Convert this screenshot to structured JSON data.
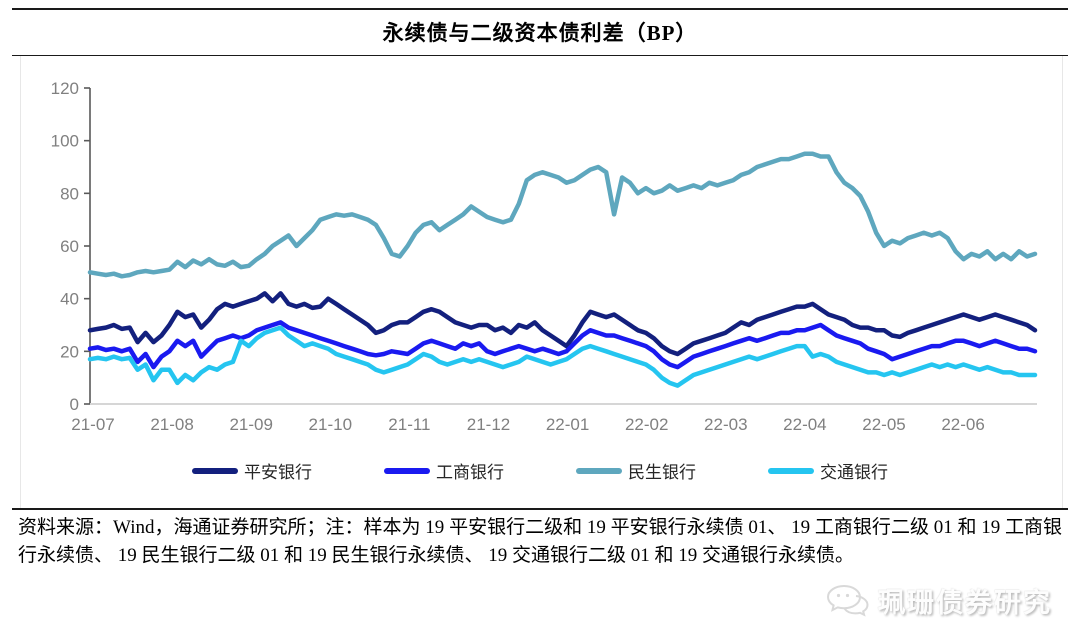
{
  "title": "永续债与二级资本债利差（BP）",
  "footer": {
    "note": "资料来源：Wind，海通证券研究所；注：样本为 19 平安银行二级和 19 平安银行永续债 01、 19 工商银行二级 01 和 19 工商银行永续债、 19 民生银行二级 01 和 19 民生银行永续债、 19 交通银行二级 01 和 19 交通银行永续债。"
  },
  "watermark": {
    "icon": "wechat-chat-bubble-icon",
    "text": "珮珊债券研究"
  },
  "chart_data": {
    "type": "line",
    "title": "永续债与二级资本债利差（BP）",
    "ylabel": "",
    "xlabel": "",
    "ylim": [
      0,
      120
    ],
    "ytick_step": 20,
    "ytick_labels": [
      "0",
      "20",
      "40",
      "60",
      "80",
      "100",
      "120"
    ],
    "x_tick_labels": [
      "21-07",
      "21-08",
      "21-09",
      "21-10",
      "21-11",
      "21-12",
      "22-01",
      "22-02",
      "22-03",
      "22-04",
      "22-05",
      "22-06"
    ],
    "grid": false,
    "legend_position": "bottom",
    "axis_color": "#595959",
    "tick_label_color": "#808080",
    "zero_line_color": "#d6d6d6",
    "series": [
      {
        "name": "平安银行",
        "color": "#13207e",
        "values": [
          28,
          28.5,
          29,
          30,
          28.5,
          29,
          23.5,
          27,
          23.5,
          26,
          30,
          35,
          33,
          34,
          29,
          32,
          36,
          38,
          37,
          38,
          39,
          40,
          42,
          39,
          42,
          38,
          37,
          38,
          36.5,
          37,
          40,
          38,
          36,
          34,
          32,
          30,
          27,
          28,
          30,
          31,
          31,
          33,
          35,
          36,
          35,
          33,
          31,
          30,
          29,
          30,
          30,
          28,
          29,
          27,
          30,
          29,
          31,
          28,
          26,
          24,
          22,
          26,
          31,
          35,
          34,
          33,
          34,
          32,
          30,
          28,
          27,
          25,
          22,
          20,
          19,
          21,
          23,
          24,
          25,
          26,
          27,
          29,
          31,
          30,
          32,
          33,
          34,
          35,
          36,
          37,
          37,
          38,
          36,
          34,
          33,
          32,
          30,
          29,
          29,
          28,
          28,
          26,
          25.5,
          27,
          28,
          29,
          30,
          31,
          32,
          33,
          34,
          33,
          32,
          33,
          34,
          33,
          32,
          31,
          30,
          28
        ]
      },
      {
        "name": "工商银行",
        "color": "#1a1af0",
        "values": [
          21,
          21.5,
          20.5,
          21,
          20,
          21,
          16,
          19,
          14,
          18,
          20,
          24,
          22,
          24,
          18,
          21,
          24,
          25,
          26,
          25,
          26,
          28,
          29,
          30,
          31,
          29,
          28,
          27,
          26,
          25,
          24,
          23,
          22,
          21,
          20,
          19,
          18.5,
          19,
          20,
          19.5,
          19,
          21,
          23,
          24,
          23,
          22,
          21,
          23,
          22,
          23,
          20,
          19,
          20,
          21,
          22,
          21,
          20,
          21,
          20,
          19,
          20,
          23,
          26,
          28,
          27,
          26,
          26,
          25,
          24,
          23,
          22,
          20,
          17,
          15,
          14,
          16,
          18,
          19,
          20,
          21,
          22,
          23,
          24,
          25,
          24,
          25,
          26,
          27,
          27,
          28,
          28,
          29,
          30,
          28,
          26,
          25,
          24,
          23,
          21,
          20,
          19,
          17,
          18,
          19,
          20,
          21,
          22,
          22,
          23,
          24,
          24,
          23,
          22,
          23,
          24,
          23,
          22,
          21,
          21,
          20
        ]
      },
      {
        "name": "民生银行",
        "color": "#5ea7be",
        "values": [
          50,
          49.5,
          49,
          49.5,
          48.5,
          49,
          50,
          50.5,
          50,
          50.5,
          51,
          54,
          52,
          54.5,
          53,
          55,
          53,
          52.5,
          54,
          52,
          52.5,
          55,
          57,
          60,
          62,
          64,
          60,
          63,
          66,
          70,
          71,
          72,
          71.5,
          72,
          71,
          70,
          68,
          63,
          57,
          56,
          60,
          65,
          68,
          69,
          66,
          68,
          70,
          72,
          75,
          73,
          71,
          70,
          69,
          70,
          76,
          85,
          87,
          88,
          87,
          86,
          84,
          85,
          87,
          89,
          90,
          88,
          72,
          86,
          84,
          80,
          82,
          80,
          81,
          83,
          81,
          82,
          83,
          82,
          84,
          83,
          84,
          85,
          87,
          88,
          90,
          91,
          92,
          93,
          93,
          94,
          95,
          95,
          94,
          94,
          88,
          84,
          82,
          79,
          73,
          65,
          60,
          62,
          61,
          63,
          64,
          65,
          64,
          65,
          63,
          58,
          55,
          57,
          56,
          58,
          55,
          57,
          55,
          58,
          56,
          57
        ]
      },
      {
        "name": "交通银行",
        "color": "#25c5f0",
        "values": [
          17,
          17.5,
          17,
          18,
          17,
          17.5,
          13,
          15,
          9,
          13,
          13,
          8,
          11,
          9,
          12,
          14,
          13,
          15,
          16,
          24,
          22,
          25,
          27,
          28,
          29,
          26,
          24,
          22,
          23,
          22,
          21,
          19,
          18,
          17,
          16,
          15,
          13,
          12,
          13,
          14,
          15,
          17,
          19,
          18,
          16,
          15,
          16,
          17,
          16,
          17,
          16,
          15,
          14,
          15,
          16,
          18,
          17,
          16,
          15,
          16,
          17,
          19,
          21,
          22,
          21,
          20,
          19,
          18,
          17,
          16,
          15,
          13,
          10,
          8,
          7,
          9,
          11,
          12,
          13,
          14,
          15,
          16,
          17,
          18,
          17,
          18,
          19,
          20,
          21,
          22,
          22,
          18,
          19,
          18,
          16,
          15,
          14,
          13,
          12,
          12,
          11,
          12,
          11,
          12,
          13,
          14,
          15,
          14,
          15,
          14,
          15,
          14,
          13,
          14,
          13,
          12,
          12,
          11,
          11,
          11
        ]
      }
    ]
  }
}
